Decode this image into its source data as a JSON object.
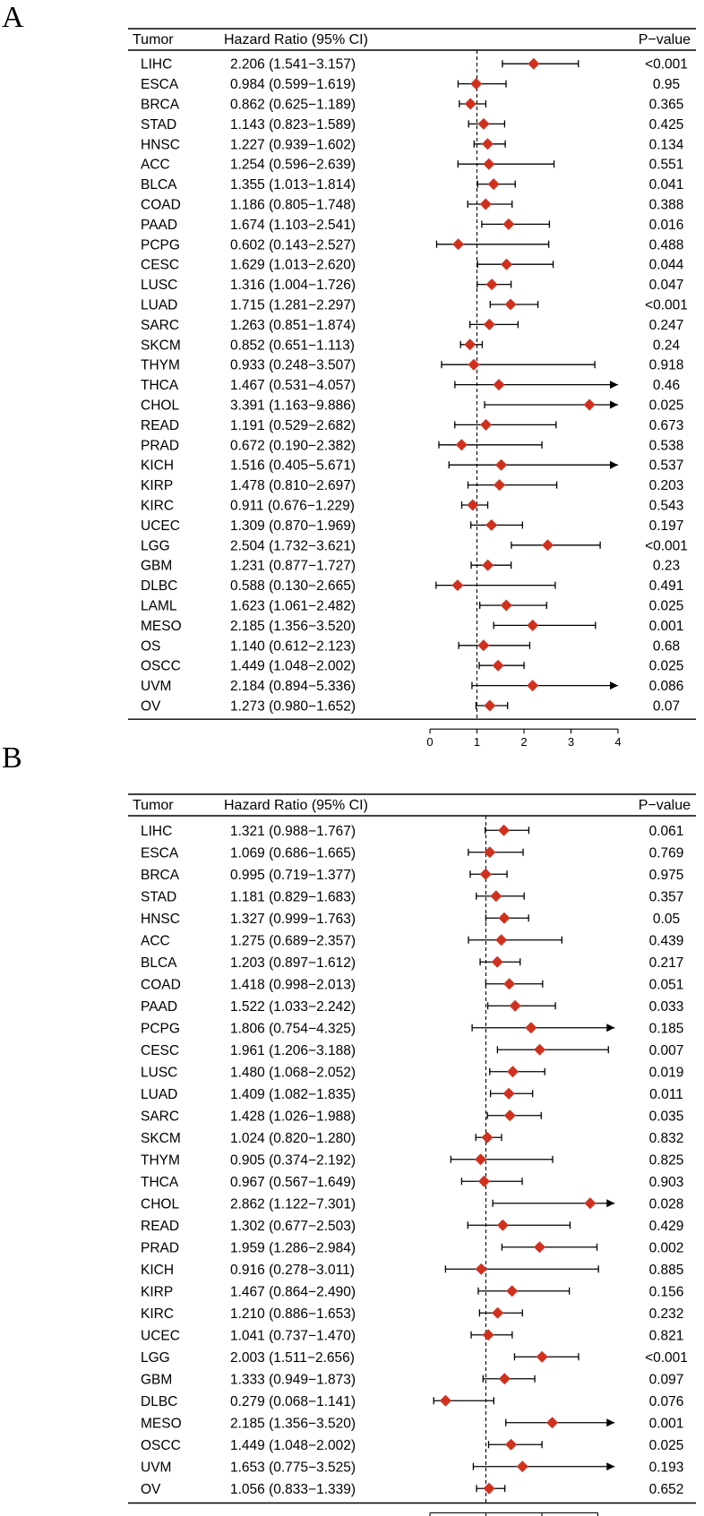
{
  "headers": {
    "tumor": "Tumor",
    "hr": "Hazard Ratio (95% CI)",
    "p": "P−value"
  },
  "colors": {
    "marker": "#d0311f",
    "line": "#000000"
  },
  "chart_data": [
    {
      "type": "forest",
      "panel": "A",
      "reference_line": 1,
      "xlim": [
        0,
        4
      ],
      "xticks": [
        0,
        1,
        2,
        3,
        4
      ],
      "rows": [
        {
          "tumor": "LIHC",
          "hr": 2.206,
          "lo": 1.541,
          "hi": 3.157,
          "hr_text": "2.206 (1.541−3.157)",
          "p": "<0.001"
        },
        {
          "tumor": "ESCA",
          "hr": 0.984,
          "lo": 0.599,
          "hi": 1.619,
          "hr_text": "0.984 (0.599−1.619)",
          "p": "0.95"
        },
        {
          "tumor": "BRCA",
          "hr": 0.862,
          "lo": 0.625,
          "hi": 1.189,
          "hr_text": "0.862 (0.625−1.189)",
          "p": "0.365"
        },
        {
          "tumor": "STAD",
          "hr": 1.143,
          "lo": 0.823,
          "hi": 1.589,
          "hr_text": "1.143 (0.823−1.589)",
          "p": "0.425"
        },
        {
          "tumor": "HNSC",
          "hr": 1.227,
          "lo": 0.939,
          "hi": 1.602,
          "hr_text": "1.227 (0.939−1.602)",
          "p": "0.134"
        },
        {
          "tumor": "ACC",
          "hr": 1.254,
          "lo": 0.596,
          "hi": 2.639,
          "hr_text": "1.254 (0.596−2.639)",
          "p": "0.551"
        },
        {
          "tumor": "BLCA",
          "hr": 1.355,
          "lo": 1.013,
          "hi": 1.814,
          "hr_text": "1.355 (1.013−1.814)",
          "p": "0.041"
        },
        {
          "tumor": "COAD",
          "hr": 1.186,
          "lo": 0.805,
          "hi": 1.748,
          "hr_text": "1.186 (0.805−1.748)",
          "p": "0.388"
        },
        {
          "tumor": "PAAD",
          "hr": 1.674,
          "lo": 1.103,
          "hi": 2.541,
          "hr_text": "1.674 (1.103−2.541)",
          "p": "0.016"
        },
        {
          "tumor": "PCPG",
          "hr": 0.602,
          "lo": 0.143,
          "hi": 2.527,
          "hr_text": "0.602 (0.143−2.527)",
          "p": "0.488"
        },
        {
          "tumor": "CESC",
          "hr": 1.629,
          "lo": 1.013,
          "hi": 2.62,
          "hr_text": "1.629 (1.013−2.620)",
          "p": "0.044"
        },
        {
          "tumor": "LUSC",
          "hr": 1.316,
          "lo": 1.004,
          "hi": 1.726,
          "hr_text": "1.316 (1.004−1.726)",
          "p": "0.047"
        },
        {
          "tumor": "LUAD",
          "hr": 1.715,
          "lo": 1.281,
          "hi": 2.297,
          "hr_text": "1.715 (1.281−2.297)",
          "p": "<0.001"
        },
        {
          "tumor": "SARC",
          "hr": 1.263,
          "lo": 0.851,
          "hi": 1.874,
          "hr_text": "1.263 (0.851−1.874)",
          "p": "0.247"
        },
        {
          "tumor": "SKCM",
          "hr": 0.852,
          "lo": 0.651,
          "hi": 1.113,
          "hr_text": "0.852 (0.651−1.113)",
          "p": "0.24"
        },
        {
          "tumor": "THYM",
          "hr": 0.933,
          "lo": 0.248,
          "hi": 3.507,
          "hr_text": "0.933 (0.248−3.507)",
          "p": "0.918"
        },
        {
          "tumor": "THCA",
          "hr": 1.467,
          "lo": 0.531,
          "hi": 4.057,
          "hr_text": "1.467 (0.531−4.057)",
          "p": "0.46"
        },
        {
          "tumor": "CHOL",
          "hr": 3.391,
          "lo": 1.163,
          "hi": 9.886,
          "hr_text": "3.391 (1.163−9.886)",
          "p": "0.025"
        },
        {
          "tumor": "READ",
          "hr": 1.191,
          "lo": 0.529,
          "hi": 2.682,
          "hr_text": "1.191 (0.529−2.682)",
          "p": "0.673"
        },
        {
          "tumor": "PRAD",
          "hr": 0.672,
          "lo": 0.19,
          "hi": 2.382,
          "hr_text": "0.672 (0.190−2.382)",
          "p": "0.538"
        },
        {
          "tumor": "KICH",
          "hr": 1.516,
          "lo": 0.405,
          "hi": 5.671,
          "hr_text": "1.516 (0.405−5.671)",
          "p": "0.537"
        },
        {
          "tumor": "KIRP",
          "hr": 1.478,
          "lo": 0.81,
          "hi": 2.697,
          "hr_text": "1.478 (0.810−2.697)",
          "p": "0.203"
        },
        {
          "tumor": "KIRC",
          "hr": 0.911,
          "lo": 0.676,
          "hi": 1.229,
          "hr_text": "0.911 (0.676−1.229)",
          "p": "0.543"
        },
        {
          "tumor": "UCEC",
          "hr": 1.309,
          "lo": 0.87,
          "hi": 1.969,
          "hr_text": "1.309 (0.870−1.969)",
          "p": "0.197"
        },
        {
          "tumor": "LGG",
          "hr": 2.504,
          "lo": 1.732,
          "hi": 3.621,
          "hr_text": "2.504 (1.732−3.621)",
          "p": "<0.001"
        },
        {
          "tumor": "GBM",
          "hr": 1.231,
          "lo": 0.877,
          "hi": 1.727,
          "hr_text": "1.231 (0.877−1.727)",
          "p": "0.23"
        },
        {
          "tumor": "DLBC",
          "hr": 0.588,
          "lo": 0.13,
          "hi": 2.665,
          "hr_text": "0.588 (0.130−2.665)",
          "p": "0.491"
        },
        {
          "tumor": "LAML",
          "hr": 1.623,
          "lo": 1.061,
          "hi": 2.482,
          "hr_text": "1.623 (1.061−2.482)",
          "p": "0.025"
        },
        {
          "tumor": "MESO",
          "hr": 2.185,
          "lo": 1.356,
          "hi": 3.52,
          "hr_text": "2.185 (1.356−3.520)",
          "p": "0.001"
        },
        {
          "tumor": "OS",
          "hr": 1.14,
          "lo": 0.612,
          "hi": 2.123,
          "hr_text": "1.140 (0.612−2.123)",
          "p": "0.68"
        },
        {
          "tumor": "OSCC",
          "hr": 1.449,
          "lo": 1.048,
          "hi": 2.002,
          "hr_text": "1.449 (1.048−2.002)",
          "p": "0.025"
        },
        {
          "tumor": "UVM",
          "hr": 2.184,
          "lo": 0.894,
          "hi": 5.336,
          "hr_text": "2.184 (0.894−5.336)",
          "p": "0.086"
        },
        {
          "tumor": "OV",
          "hr": 1.273,
          "lo": 0.98,
          "hi": 1.652,
          "hr_text": "1.273 (0.980−1.652)",
          "p": "0.07"
        }
      ]
    },
    {
      "type": "forest",
      "panel": "B",
      "reference_line": 1,
      "xlim": [
        0,
        3.3
      ],
      "xticks": [
        0,
        1,
        2,
        3
      ],
      "rows": [
        {
          "tumor": "LIHC",
          "hr": 1.321,
          "lo": 0.988,
          "hi": 1.767,
          "hr_text": "1.321 (0.988−1.767)",
          "p": "0.061"
        },
        {
          "tumor": "ESCA",
          "hr": 1.069,
          "lo": 0.686,
          "hi": 1.665,
          "hr_text": "1.069 (0.686−1.665)",
          "p": "0.769"
        },
        {
          "tumor": "BRCA",
          "hr": 0.995,
          "lo": 0.719,
          "hi": 1.377,
          "hr_text": "0.995 (0.719−1.377)",
          "p": "0.975"
        },
        {
          "tumor": "STAD",
          "hr": 1.181,
          "lo": 0.829,
          "hi": 1.683,
          "hr_text": "1.181 (0.829−1.683)",
          "p": "0.357"
        },
        {
          "tumor": "HNSC",
          "hr": 1.327,
          "lo": 0.999,
          "hi": 1.763,
          "hr_text": "1.327 (0.999−1.763)",
          "p": "0.05"
        },
        {
          "tumor": "ACC",
          "hr": 1.275,
          "lo": 0.689,
          "hi": 2.357,
          "hr_text": "1.275 (0.689−2.357)",
          "p": "0.439"
        },
        {
          "tumor": "BLCA",
          "hr": 1.203,
          "lo": 0.897,
          "hi": 1.612,
          "hr_text": "1.203 (0.897−1.612)",
          "p": "0.217"
        },
        {
          "tumor": "COAD",
          "hr": 1.418,
          "lo": 0.998,
          "hi": 2.013,
          "hr_text": "1.418 (0.998−2.013)",
          "p": "0.051"
        },
        {
          "tumor": "PAAD",
          "hr": 1.522,
          "lo": 1.033,
          "hi": 2.242,
          "hr_text": "1.522 (1.033−2.242)",
          "p": "0.033"
        },
        {
          "tumor": "PCPG",
          "hr": 1.806,
          "lo": 0.754,
          "hi": 4.325,
          "hr_text": "1.806 (0.754−4.325)",
          "p": "0.185"
        },
        {
          "tumor": "CESC",
          "hr": 1.961,
          "lo": 1.206,
          "hi": 3.188,
          "hr_text": "1.961 (1.206−3.188)",
          "p": "0.007"
        },
        {
          "tumor": "LUSC",
          "hr": 1.48,
          "lo": 1.068,
          "hi": 2.052,
          "hr_text": "1.480 (1.068−2.052)",
          "p": "0.019"
        },
        {
          "tumor": "LUAD",
          "hr": 1.409,
          "lo": 1.082,
          "hi": 1.835,
          "hr_text": "1.409 (1.082−1.835)",
          "p": "0.011"
        },
        {
          "tumor": "SARC",
          "hr": 1.428,
          "lo": 1.026,
          "hi": 1.988,
          "hr_text": "1.428 (1.026−1.988)",
          "p": "0.035"
        },
        {
          "tumor": "SKCM",
          "hr": 1.024,
          "lo": 0.82,
          "hi": 1.28,
          "hr_text": "1.024 (0.820−1.280)",
          "p": "0.832"
        },
        {
          "tumor": "THYM",
          "hr": 0.905,
          "lo": 0.374,
          "hi": 2.192,
          "hr_text": "0.905 (0.374−2.192)",
          "p": "0.825"
        },
        {
          "tumor": "THCA",
          "hr": 0.967,
          "lo": 0.567,
          "hi": 1.649,
          "hr_text": "0.967 (0.567−1.649)",
          "p": "0.903"
        },
        {
          "tumor": "CHOL",
          "hr": 2.862,
          "lo": 1.122,
          "hi": 7.301,
          "hr_text": "2.862 (1.122−7.301)",
          "p": "0.028"
        },
        {
          "tumor": "READ",
          "hr": 1.302,
          "lo": 0.677,
          "hi": 2.503,
          "hr_text": "1.302 (0.677−2.503)",
          "p": "0.429"
        },
        {
          "tumor": "PRAD",
          "hr": 1.959,
          "lo": 1.286,
          "hi": 2.984,
          "hr_text": "1.959 (1.286−2.984)",
          "p": "0.002"
        },
        {
          "tumor": "KICH",
          "hr": 0.916,
          "lo": 0.278,
          "hi": 3.011,
          "hr_text": "0.916 (0.278−3.011)",
          "p": "0.885"
        },
        {
          "tumor": "KIRP",
          "hr": 1.467,
          "lo": 0.864,
          "hi": 2.49,
          "hr_text": "1.467 (0.864−2.490)",
          "p": "0.156"
        },
        {
          "tumor": "KIRC",
          "hr": 1.21,
          "lo": 0.886,
          "hi": 1.653,
          "hr_text": "1.210 (0.886−1.653)",
          "p": "0.232"
        },
        {
          "tumor": "UCEC",
          "hr": 1.041,
          "lo": 0.737,
          "hi": 1.47,
          "hr_text": "1.041 (0.737−1.470)",
          "p": "0.821"
        },
        {
          "tumor": "LGG",
          "hr": 2.003,
          "lo": 1.511,
          "hi": 2.656,
          "hr_text": "2.003 (1.511−2.656)",
          "p": "<0.001"
        },
        {
          "tumor": "GBM",
          "hr": 1.333,
          "lo": 0.949,
          "hi": 1.873,
          "hr_text": "1.333 (0.949−1.873)",
          "p": "0.097"
        },
        {
          "tumor": "DLBC",
          "hr": 0.279,
          "lo": 0.068,
          "hi": 1.141,
          "hr_text": "0.279 (0.068−1.141)",
          "p": "0.076"
        },
        {
          "tumor": "MESO",
          "hr": 2.185,
          "lo": 1.356,
          "hi": 3.52,
          "hr_text": "2.185 (1.356−3.520)",
          "p": "0.001"
        },
        {
          "tumor": "OSCC",
          "hr": 1.449,
          "lo": 1.048,
          "hi": 2.002,
          "hr_text": "1.449 (1.048−2.002)",
          "p": "0.025"
        },
        {
          "tumor": "UVM",
          "hr": 1.653,
          "lo": 0.775,
          "hi": 3.525,
          "hr_text": "1.653 (0.775−3.525)",
          "p": "0.193"
        },
        {
          "tumor": "OV",
          "hr": 1.056,
          "lo": 0.833,
          "hi": 1.339,
          "hr_text": "1.056 (0.833−1.339)",
          "p": "0.652"
        }
      ]
    }
  ]
}
